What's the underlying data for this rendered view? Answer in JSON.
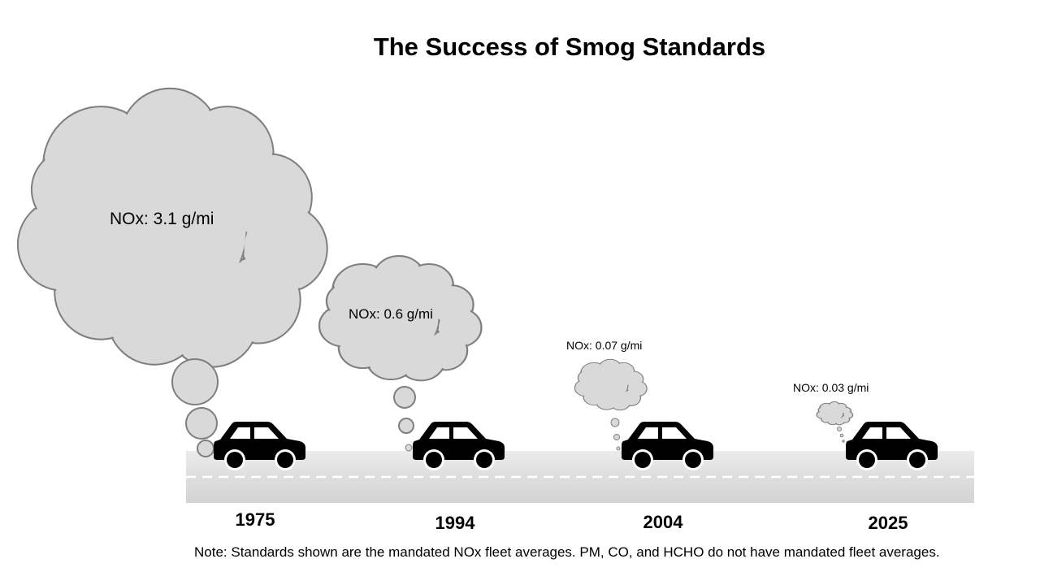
{
  "title": "The Success of Smog Standards",
  "stages": [
    {
      "year": "1975",
      "label": "NOx: 3.1 g/mi",
      "nox_g_per_mi": 3.1
    },
    {
      "year": "1994",
      "label": "NOx: 0.6 g/mi",
      "nox_g_per_mi": 0.6
    },
    {
      "year": "2004",
      "label": "NOx:  0.07 g/mi",
      "nox_g_per_mi": 0.07
    },
    {
      "year": "2025",
      "label": "NOx: 0.03 g/mi",
      "nox_g_per_mi": 0.03
    }
  ],
  "note": "Note: Standards shown are the mandated NOx fleet averages. PM, CO, and HCHO do not have mandated fleet averages.",
  "colors": {
    "cloud_fill": "#d9d9d9",
    "cloud_stroke": "#7f7f7f",
    "road": "#e3e3e3",
    "road_line": "#ffffff",
    "car": "#000000"
  }
}
